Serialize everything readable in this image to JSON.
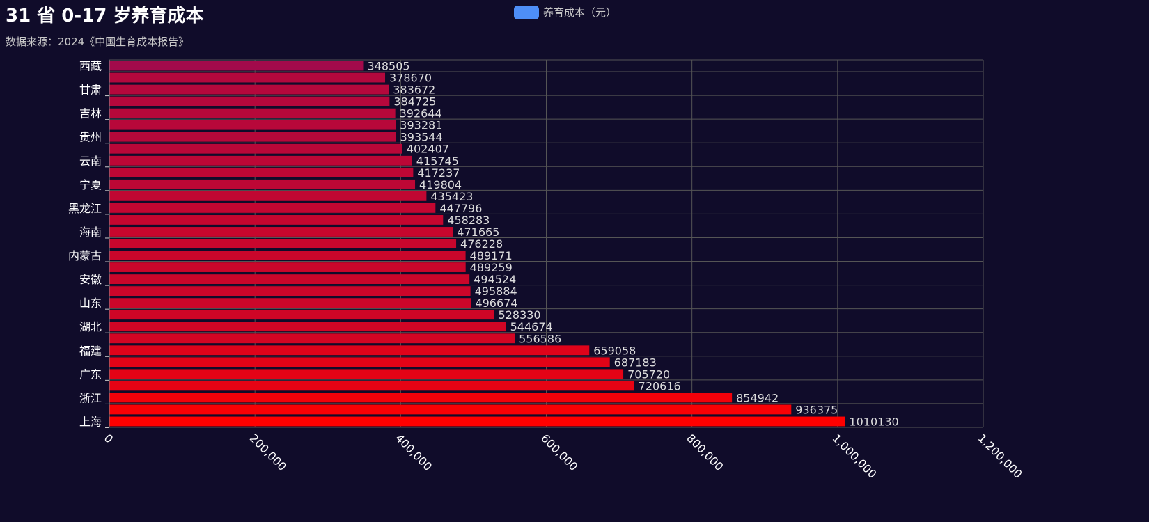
{
  "title": "31 省 0-17 岁养育成本",
  "subtitle": "数据来源：2024《中国生育成本报告》",
  "legend": {
    "label": "养育成本（元）",
    "color": "#4e8ef7"
  },
  "colors": {
    "background": "#100c2a",
    "bar_low": "#a20a4b",
    "bar_high": "#ff0000",
    "grid": "#555555",
    "label": "#dddddd"
  },
  "chart_data": {
    "type": "bar",
    "orientation": "horizontal",
    "categories": [
      "西藏",
      "",
      "甘肃",
      "",
      "吉林",
      "",
      "贵州",
      "",
      "云南",
      "",
      "宁夏",
      "",
      "黑龙江",
      "",
      "海南",
      "",
      "内蒙古",
      "",
      "安徽",
      "",
      "山东",
      "",
      "湖北",
      "",
      "福建",
      "",
      "广东",
      "",
      "浙江",
      "",
      "上海"
    ],
    "series": [
      {
        "name": "养育成本（元）",
        "values": [
          348505,
          378670,
          383672,
          384725,
          392644,
          393281,
          393544,
          402407,
          415745,
          417237,
          419804,
          435423,
          447796,
          458283,
          471665,
          476228,
          489171,
          489259,
          494524,
          495884,
          496674,
          528330,
          544674,
          556586,
          659058,
          687183,
          705720,
          720616,
          854942,
          936375,
          1010130
        ]
      }
    ],
    "xlim": [
      0,
      1200000
    ],
    "xticks": [
      "0",
      "200,000",
      "400,000",
      "600,000",
      "800,000",
      "1,000,000",
      "1,200,000"
    ],
    "grid": true,
    "data_labels": true,
    "legend_position": "top-center"
  }
}
